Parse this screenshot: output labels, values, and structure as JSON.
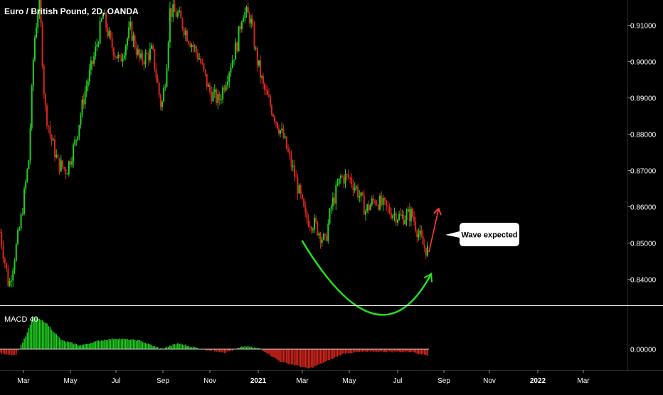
{
  "chart_title": "Euro / British Pound, 2D, OANDA",
  "colors": {
    "background": "#000000",
    "up": "#1fcf1f",
    "down": "#d9261c",
    "axis_text": "#ffffff",
    "separator": "#ffffff",
    "annotation_curve": "#22e022",
    "annotation_arrow": "#ff3b2b",
    "callout_bg": "#ffffff",
    "callout_text": "#000000"
  },
  "annotation": {
    "callout_text": "Wave expected"
  },
  "indicator": {
    "label": "MACD 40"
  },
  "chart_data": [
    {
      "type": "candlestick",
      "title": "Euro / British Pound, 2D, OANDA",
      "x_tick_labels": [
        "Mar",
        "May",
        "Jul",
        "Sep",
        "Nov",
        "2021",
        "Mar",
        "May",
        "Jul",
        "Sep",
        "Nov",
        "2022",
        "Mar"
      ],
      "y_tick_labels": [
        "0.91000",
        "0.90000",
        "0.89000",
        "0.88000",
        "0.87000",
        "0.86000",
        "0.85000",
        "0.84000"
      ],
      "y_ticks": [
        0.91,
        0.9,
        0.89,
        0.88,
        0.87,
        0.86,
        0.85,
        0.84
      ],
      "ylim": [
        0.833,
        0.917
      ],
      "x_range": [
        "2020-02-01",
        "2022-04-15"
      ],
      "anchors": [
        [
          "2020-02-01",
          0.853
        ],
        [
          "2020-02-12",
          0.838
        ],
        [
          "2020-02-26",
          0.855
        ],
        [
          "2020-03-08",
          0.873
        ],
        [
          "2020-03-15",
          0.905
        ],
        [
          "2020-03-22",
          0.918
        ],
        [
          "2020-03-29",
          0.888
        ],
        [
          "2020-04-05",
          0.88
        ],
        [
          "2020-04-15",
          0.872
        ],
        [
          "2020-04-26",
          0.87
        ],
        [
          "2020-05-08",
          0.878
        ],
        [
          "2020-05-20",
          0.891
        ],
        [
          "2020-06-03",
          0.902
        ],
        [
          "2020-06-14",
          0.913
        ],
        [
          "2020-06-24",
          0.905
        ],
        [
          "2020-07-06",
          0.9
        ],
        [
          "2020-07-20",
          0.909
        ],
        [
          "2020-08-02",
          0.9
        ],
        [
          "2020-08-18",
          0.903
        ],
        [
          "2020-08-30",
          0.887
        ],
        [
          "2020-09-05",
          0.897
        ],
        [
          "2020-09-10",
          0.914
        ],
        [
          "2020-09-20",
          0.913
        ],
        [
          "2020-10-03",
          0.907
        ],
        [
          "2020-10-18",
          0.901
        ],
        [
          "2020-10-31",
          0.892
        ],
        [
          "2020-11-12",
          0.889
        ],
        [
          "2020-11-22",
          0.896
        ],
        [
          "2020-12-05",
          0.905
        ],
        [
          "2020-12-12",
          0.914
        ],
        [
          "2020-12-22",
          0.912
        ],
        [
          "2020-12-30",
          0.901
        ],
        [
          "2021-01-08",
          0.893
        ],
        [
          "2021-01-22",
          0.886
        ],
        [
          "2021-02-05",
          0.879
        ],
        [
          "2021-02-20",
          0.868
        ],
        [
          "2021-03-05",
          0.857
        ],
        [
          "2021-03-18",
          0.855
        ],
        [
          "2021-03-31",
          0.85
        ],
        [
          "2021-04-08",
          0.86
        ],
        [
          "2021-04-20",
          0.868
        ],
        [
          "2021-05-01",
          0.868
        ],
        [
          "2021-05-10",
          0.865
        ],
        [
          "2021-05-22",
          0.859
        ],
        [
          "2021-06-03",
          0.862
        ],
        [
          "2021-06-20",
          0.859
        ],
        [
          "2021-07-05",
          0.857
        ],
        [
          "2021-07-20",
          0.858
        ],
        [
          "2021-07-30",
          0.852
        ],
        [
          "2021-08-05",
          0.849
        ],
        [
          "2021-08-10",
          0.848
        ]
      ],
      "candle_interval_days": 2,
      "candle_end": "2021-08-10",
      "macd_histogram": [
        [
          "2020-02-01",
          -0.0006
        ],
        [
          "2020-02-20",
          -0.0009
        ],
        [
          "2020-03-05",
          0.002
        ],
        [
          "2020-03-14",
          0.0046
        ],
        [
          "2020-03-30",
          0.0038
        ],
        [
          "2020-04-20",
          0.0012
        ],
        [
          "2020-05-15",
          0.0005
        ],
        [
          "2020-06-10",
          0.0012
        ],
        [
          "2020-07-01",
          0.0015
        ],
        [
          "2020-08-01",
          0.0012
        ],
        [
          "2020-08-30",
          0.0
        ],
        [
          "2020-09-20",
          0.0008
        ],
        [
          "2020-10-20",
          0.0
        ],
        [
          "2020-11-20",
          -0.0005
        ],
        [
          "2020-12-15",
          0.0004
        ],
        [
          "2021-01-05",
          0.0
        ],
        [
          "2021-02-01",
          -0.0018
        ],
        [
          "2021-03-10",
          -0.0028
        ],
        [
          "2021-04-01",
          -0.0018
        ],
        [
          "2021-04-25",
          -0.0006
        ],
        [
          "2021-05-20",
          -0.0004
        ],
        [
          "2021-06-20",
          -0.0004
        ],
        [
          "2021-07-20",
          -0.0004
        ],
        [
          "2021-08-10",
          -0.0009
        ]
      ],
      "macd_y_tick_labels": [
        "0.00000"
      ],
      "macd_ylim": [
        -0.0028,
        0.006
      ],
      "annotation": {
        "curve": [
          [
            "2021-03-01",
            0.8505
          ],
          [
            "2021-06-01",
            0.8305
          ],
          [
            "2021-08-15",
            0.8415
          ]
        ],
        "arrow_up": [
          [
            "2021-08-12",
            0.8475
          ],
          [
            "2021-08-25",
            0.8595
          ]
        ],
        "callout_text": "Wave expected"
      }
    }
  ]
}
